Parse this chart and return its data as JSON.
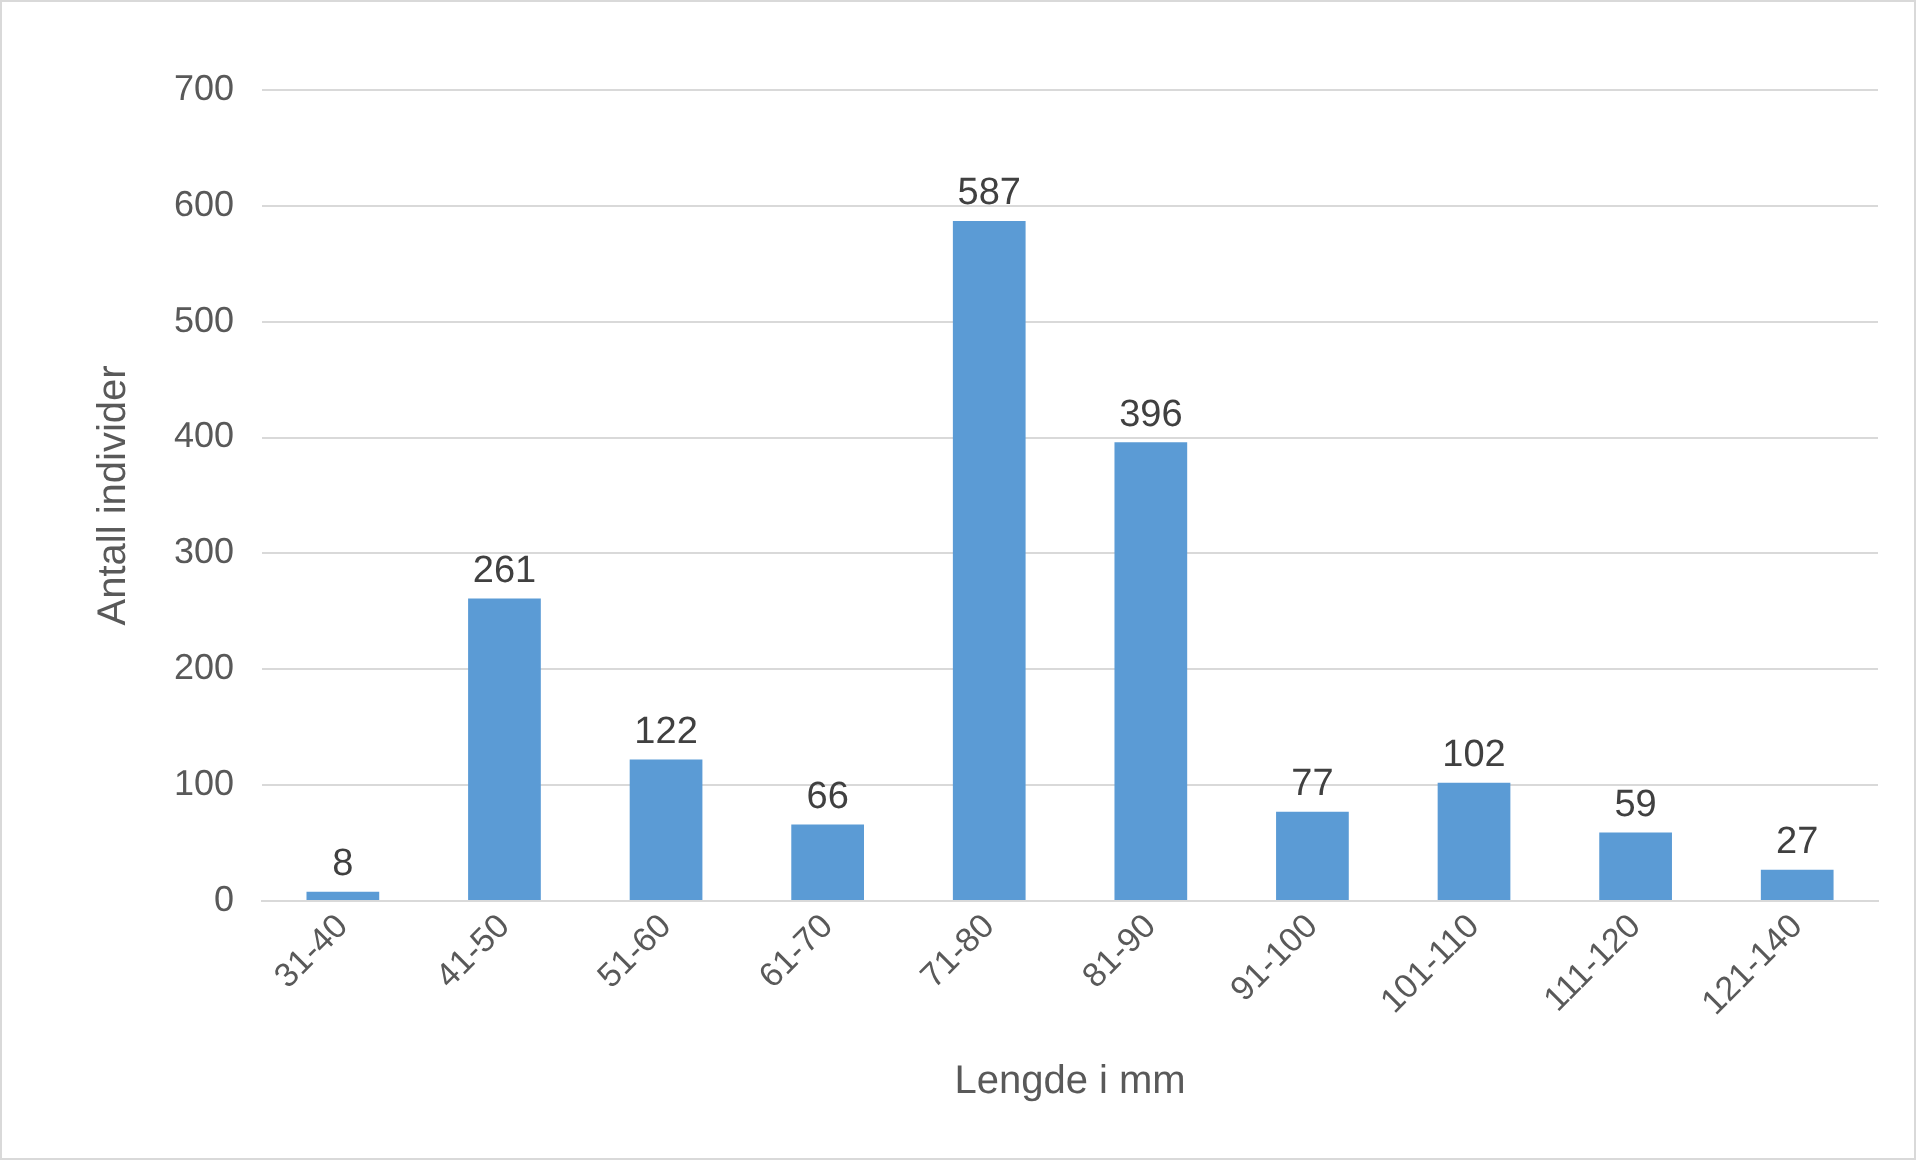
{
  "chart_data": {
    "type": "bar",
    "xlabel": "Lengde i mm",
    "ylabel": "Antall individer",
    "categories": [
      "31-40",
      "41-50",
      "51-60",
      "61-70",
      "71-80",
      "81-90",
      "91-100",
      "101-110",
      "111-120",
      "121-140"
    ],
    "values": [
      8,
      261,
      122,
      66,
      587,
      396,
      77,
      102,
      59,
      27
    ],
    "color": "#5b9bd5",
    "ylim": [
      0,
      700
    ],
    "yticks": [
      0,
      100,
      200,
      300,
      400,
      500,
      600,
      700
    ],
    "grid": "y",
    "legend": false,
    "data_labels": true
  }
}
